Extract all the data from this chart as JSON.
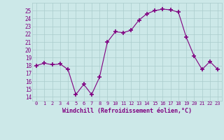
{
  "x": [
    0,
    1,
    2,
    3,
    4,
    5,
    6,
    7,
    8,
    9,
    10,
    11,
    12,
    13,
    14,
    15,
    16,
    17,
    18,
    19,
    20,
    21,
    22,
    23
  ],
  "y": [
    18.0,
    18.3,
    18.1,
    18.2,
    17.5,
    14.3,
    15.6,
    14.3,
    16.5,
    21.0,
    22.3,
    22.2,
    22.5,
    23.8,
    24.6,
    25.0,
    25.2,
    25.1,
    24.8,
    21.6,
    19.2,
    17.5,
    18.5,
    17.5
  ],
  "xlim": [
    -0.5,
    23.5
  ],
  "ylim": [
    13.5,
    26.0
  ],
  "yticks": [
    14,
    15,
    16,
    17,
    18,
    19,
    20,
    21,
    22,
    23,
    24,
    25
  ],
  "xticks": [
    0,
    1,
    2,
    3,
    4,
    5,
    6,
    7,
    8,
    9,
    10,
    11,
    12,
    13,
    14,
    15,
    16,
    17,
    18,
    19,
    20,
    21,
    22,
    23
  ],
  "xlabel": "Windchill (Refroidissement éolien,°C)",
  "line_color": "#800080",
  "marker": "+",
  "marker_size": 4,
  "bg_color": "#cce8e8",
  "grid_color": "#aacccc",
  "tick_label_color": "#800080",
  "xlabel_color": "#800080",
  "figsize": [
    3.2,
    2.0
  ],
  "dpi": 100
}
